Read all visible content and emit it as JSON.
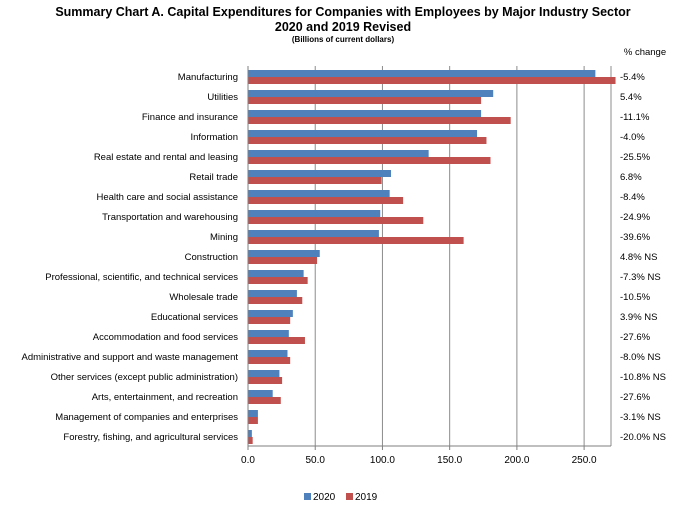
{
  "chart_data": {
    "type": "bar",
    "orientation": "horizontal",
    "title": "Summary Chart A. Capital Expenditures for Companies with Employees by Major Industry Sector",
    "subtitle": "2020 and 2019 Revised",
    "units_note": "(Billions of current dollars)",
    "pct_header": "% change",
    "categories": [
      "Manufacturing",
      "Utilities",
      "Finance and insurance",
      "Information",
      "Real estate and rental and leasing",
      "Retail trade",
      "Health care and social assistance",
      "Transportation and warehousing",
      "Mining",
      "Construction",
      "Professional, scientific, and technical services",
      "Wholesale trade",
      "Educational services",
      "Accommodation and food services",
      "Administrative and support and waste management",
      "Other services (except public administration)",
      "Arts, entertainment, and recreation",
      "Management of companies and enterprises",
      "Forestry, fishing, and agricultural services"
    ],
    "series": [
      {
        "name": "2020",
        "color": "#4F81BD",
        "values": [
          258,
          182,
          173,
          170,
          134,
          106,
          105,
          98,
          97,
          53,
          41,
          36,
          33,
          30,
          29,
          23,
          18,
          7,
          2.5
        ]
      },
      {
        "name": "2019",
        "color": "#C0504D",
        "values": [
          273,
          173,
          195,
          177,
          180,
          99,
          115,
          130,
          160,
          51,
          44,
          40,
          31,
          42,
          31,
          25,
          24,
          7,
          3.1
        ]
      }
    ],
    "pct_change": [
      "-5.4%",
      "5.4%",
      "-11.1%",
      "-4.0%",
      "-25.5%",
      "6.8%",
      "-8.4%",
      "-24.9%",
      "-39.6%",
      "4.8%  NS",
      "-7.3%  NS",
      "-10.5%",
      "3.9%  NS",
      "-27.6%",
      "-8.0%  NS",
      "-10.8%  NS",
      "-27.6%",
      "-3.1%  NS",
      "-20.0%  NS"
    ],
    "xlim": [
      0,
      270
    ],
    "xticks": [
      "0.0",
      "50.0",
      "100.0",
      "150.0",
      "200.0",
      "250.0"
    ],
    "xtick_values": [
      0,
      50,
      100,
      150,
      200,
      250
    ],
    "grid": true,
    "legend_position": "bottom"
  }
}
